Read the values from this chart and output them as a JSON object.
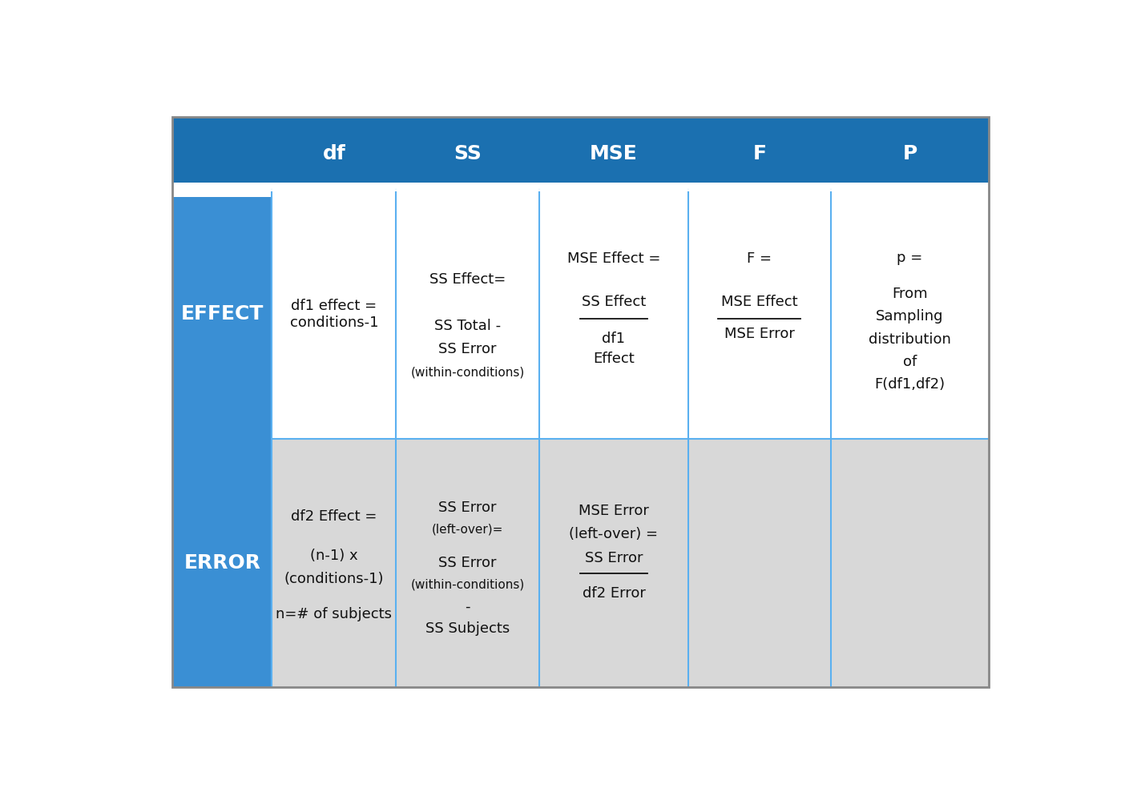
{
  "header_bg": "#1b70b0",
  "row_label_bg": "#3a8fd4",
  "effect_row_bg": "#ffffff",
  "error_row_bg": "#d8d8d8",
  "border_color": "#5ab0f0",
  "text_color": "#111111",
  "header_labels": [
    "df",
    "SS",
    "MSE",
    "F",
    "P"
  ],
  "effect_label": "EFFECT",
  "error_label": "ERROR",
  "fig_bg": "#ffffff",
  "outer_border": "#888888"
}
